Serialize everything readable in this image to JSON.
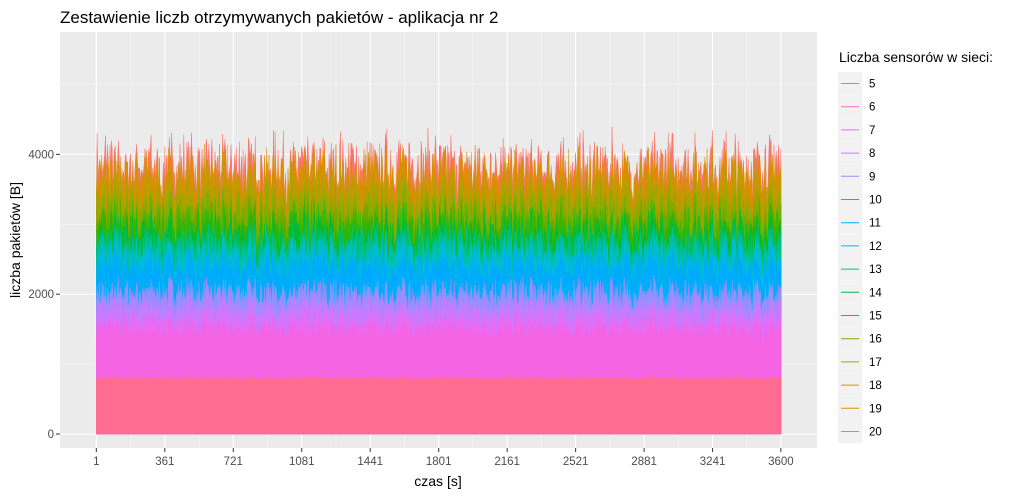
{
  "chart_data": {
    "type": "area",
    "title": "Zestawienie liczb otrzymywanych pakietów - aplikacja nr 2",
    "xlabel": "czas [s]",
    "ylabel": "liczba pakietów [B]",
    "x_range": [
      1,
      3600
    ],
    "xlim": [
      -190,
      3790
    ],
    "ylim": [
      -200,
      5750
    ],
    "x_ticks": [
      1,
      361,
      721,
      1081,
      1441,
      1801,
      2161,
      2521,
      2881,
      3241,
      3600
    ],
    "x_tick_labels": [
      "1",
      "361",
      "721",
      "1081",
      "1441",
      "1801",
      "2161",
      "2521",
      "2881",
      "3241",
      "3600"
    ],
    "y_ticks": [
      0,
      2000,
      4000
    ],
    "y_tick_labels": [
      "0",
      "2000",
      "4000"
    ],
    "grid": true,
    "legend": {
      "title": "Liczba sensorów w sieci:",
      "position": "right"
    },
    "series": [
      {
        "name": "5",
        "color": "#FF6C91",
        "approx_mean_cumulative": 800
      },
      {
        "name": "6",
        "color": "#F564E3",
        "approx_mean_cumulative": 1450
      },
      {
        "name": "7",
        "color": "#E76BF3",
        "approx_mean_cumulative": 1600
      },
      {
        "name": "8",
        "color": "#C77CFF",
        "approx_mean_cumulative": 1800
      },
      {
        "name": "9",
        "color": "#9590FF",
        "approx_mean_cumulative": 2000
      },
      {
        "name": "10",
        "color": "#00B0F6",
        "approx_mean_cumulative": 2150
      },
      {
        "name": "11",
        "color": "#00A9FF",
        "approx_mean_cumulative": 2350
      },
      {
        "name": "12",
        "color": "#00BCD8",
        "approx_mean_cumulative": 2550
      },
      {
        "name": "13",
        "color": "#00C08B",
        "approx_mean_cumulative": 2700
      },
      {
        "name": "14",
        "color": "#00BA38",
        "approx_mean_cumulative": 2850
      },
      {
        "name": "15",
        "color": "#39B600",
        "approx_mean_cumulative": 3000
      },
      {
        "name": "16",
        "color": "#7CAE00",
        "approx_mean_cumulative": 3150
      },
      {
        "name": "17",
        "color": "#A3A500",
        "approx_mean_cumulative": 3300
      },
      {
        "name": "18",
        "color": "#C49A00",
        "approx_mean_cumulative": 3500
      },
      {
        "name": "19",
        "color": "#DE8C00",
        "approx_mean_cumulative": 3650
      },
      {
        "name": "20",
        "color": "#F8766D",
        "approx_mean_cumulative": 3800
      }
    ]
  }
}
